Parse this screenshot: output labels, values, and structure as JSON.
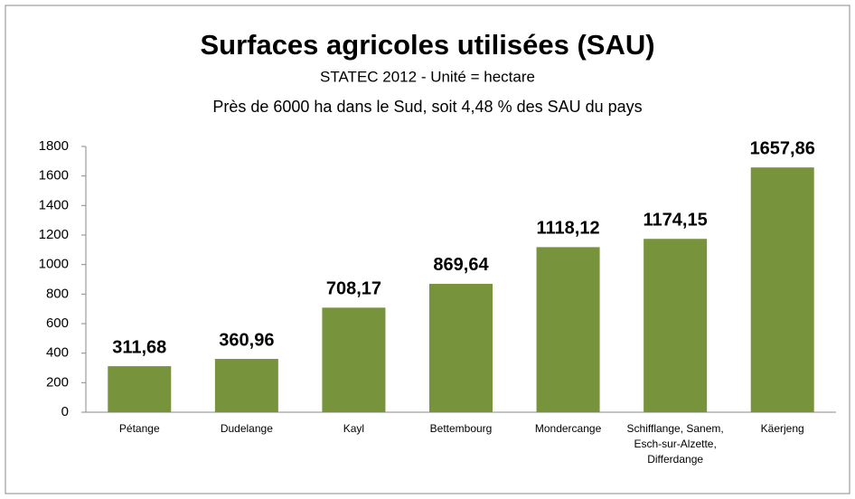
{
  "chart_data": {
    "type": "bar",
    "title": "Surfaces agricoles utilisées (SAU)",
    "subtitle": "STATEC 2012 - Unité = hectare",
    "annotation": "Près de 6000 ha dans le Sud, soit 4,48 % des SAU du pays",
    "categories": [
      "Pétange",
      "Dudelange",
      "Kayl",
      "Bettembourg",
      "Mondercange",
      "Schifflange, Sanem, Esch-sur-Alzette, Differdange",
      "Käerjeng"
    ],
    "values": [
      311.68,
      360.96,
      708.17,
      869.64,
      1118.12,
      1174.15,
      1657.86
    ],
    "value_labels": [
      "311,68",
      "360,96",
      "708,17",
      "869,64",
      "1118,12",
      "1174,15",
      "1657,86"
    ],
    "color": "#77933c",
    "ylim": [
      0,
      1800
    ],
    "yticks": [
      0,
      200,
      400,
      600,
      800,
      1000,
      1200,
      1400,
      1600,
      1800
    ],
    "grid": false
  }
}
